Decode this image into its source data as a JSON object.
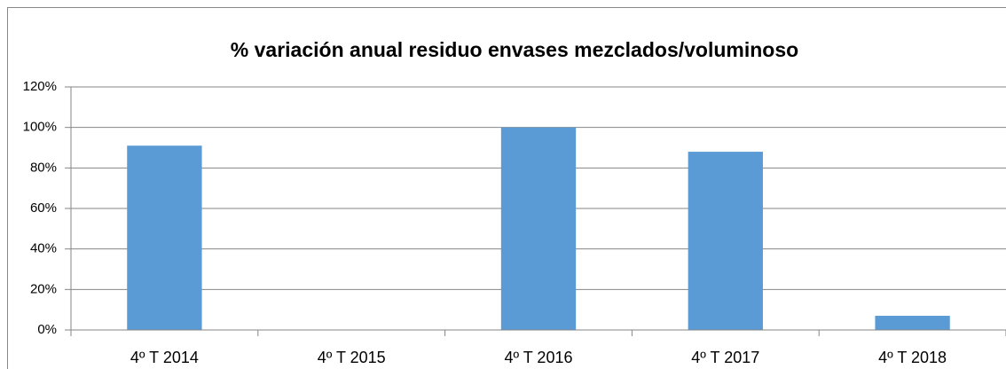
{
  "chart_data": {
    "type": "bar",
    "title": "% variación anual residuo envases mezclados/voluminoso",
    "categories": [
      "4º T 2014",
      "4º T 2015",
      "4º T 2016",
      "4º T 2017",
      "4º T 2018"
    ],
    "values": [
      91,
      0,
      100,
      88,
      7
    ],
    "color": "#5b9bd5",
    "ylim": [
      0,
      120
    ],
    "yticks": [
      {
        "value": 0,
        "label": "0%"
      },
      {
        "value": 20,
        "label": "20%"
      },
      {
        "value": 40,
        "label": "40%"
      },
      {
        "value": 60,
        "label": "60%"
      },
      {
        "value": 80,
        "label": "80%"
      },
      {
        "value": 100,
        "label": "100%"
      },
      {
        "value": 120,
        "label": "120%"
      }
    ],
    "grid": true
  }
}
